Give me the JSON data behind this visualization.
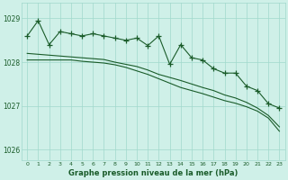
{
  "xlabel": "Graphe pression niveau de la mer (hPa)",
  "hours": [
    0,
    1,
    2,
    3,
    4,
    5,
    6,
    7,
    8,
    9,
    10,
    11,
    12,
    13,
    14,
    15,
    16,
    17,
    18,
    19,
    20,
    21,
    22,
    23
  ],
  "spiky": [
    1028.6,
    1028.95,
    1028.4,
    1028.7,
    1028.65,
    1028.6,
    1028.65,
    1028.6,
    1028.55,
    1028.5,
    1028.55,
    1028.38,
    1028.6,
    1027.95,
    1028.4,
    1028.1,
    1028.05,
    1027.85,
    1027.75,
    1027.75,
    1027.45,
    1027.35,
    1027.05,
    1026.95
  ],
  "smooth1": [
    1028.05,
    1028.05,
    1028.05,
    1028.05,
    1028.05,
    1028.02,
    1028.0,
    1027.98,
    1027.94,
    1027.88,
    1027.8,
    1027.72,
    1027.62,
    1027.52,
    1027.42,
    1027.35,
    1027.28,
    1027.2,
    1027.12,
    1027.06,
    1026.98,
    1026.88,
    1026.72,
    1026.42
  ],
  "smooth2": [
    1028.2,
    1028.18,
    1028.16,
    1028.14,
    1028.12,
    1028.1,
    1028.08,
    1028.06,
    1028.0,
    1027.95,
    1027.9,
    1027.82,
    1027.72,
    1027.65,
    1027.58,
    1027.5,
    1027.42,
    1027.35,
    1027.25,
    1027.18,
    1027.08,
    1026.95,
    1026.78,
    1026.52
  ],
  "ylim": [
    1025.75,
    1029.35
  ],
  "yticks": [
    1026,
    1027,
    1028,
    1029
  ],
  "yticklabels": [
    "1026",
    "1027",
    "1028",
    "1029"
  ],
  "bg_color": "#cff0e8",
  "grid_color": "#a0d8cc",
  "line_color": "#1a5c2a",
  "markersize": 4,
  "linewidth": 0.8
}
